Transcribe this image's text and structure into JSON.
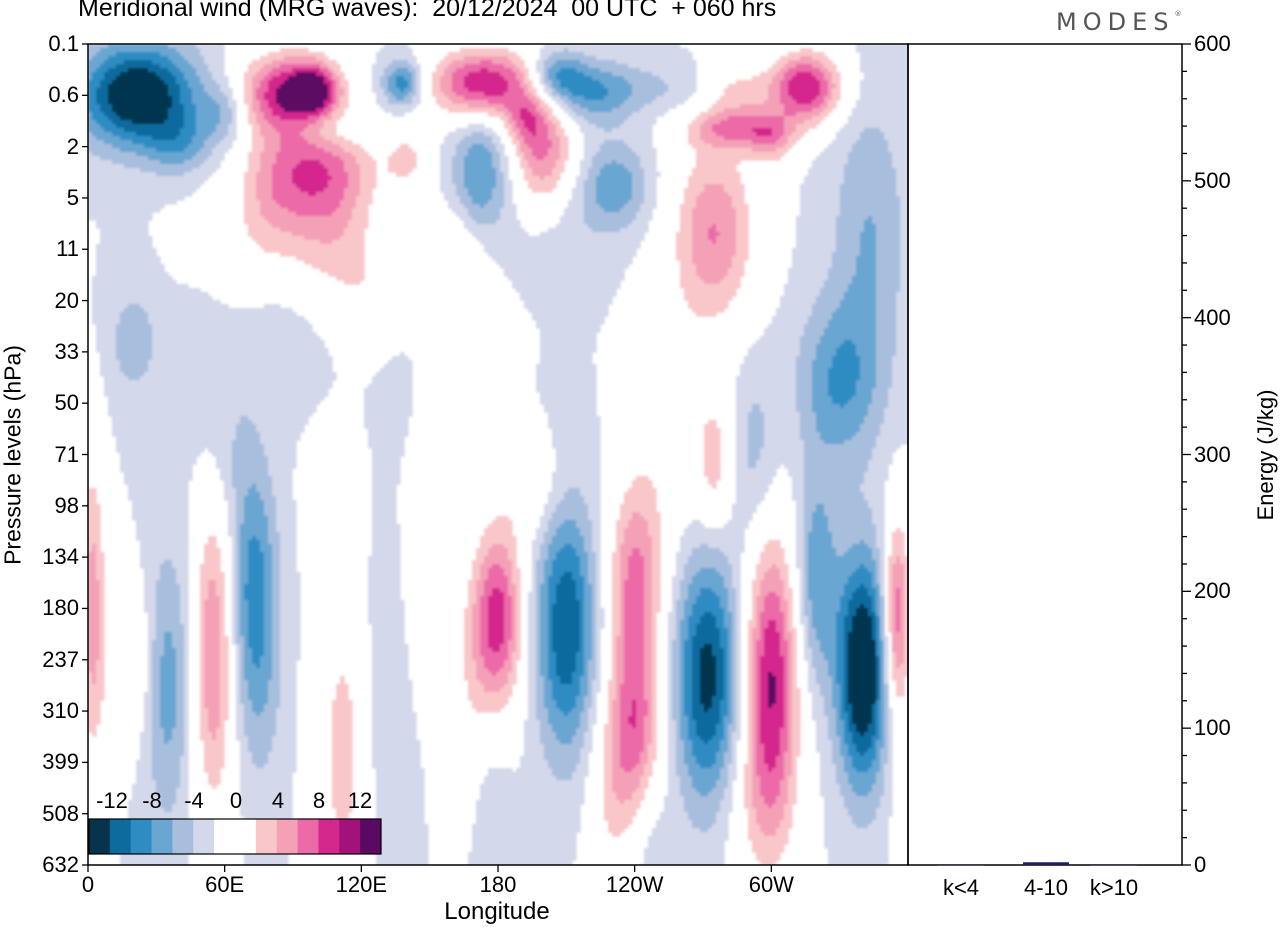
{
  "title": "Meridional wind (MRG waves):  20/12/2024  00 UTC  + 060 hrs",
  "logo": "MODES",
  "chart_data": [
    {
      "type": "heatmap",
      "xlabel": "Longitude",
      "ylabel": "Pressure levels (hPa)",
      "x_ticks": [
        {
          "label": "0",
          "lon": 0
        },
        {
          "label": "60E",
          "lon": 60
        },
        {
          "label": "120E",
          "lon": 120
        },
        {
          "label": "180",
          "lon": 180
        },
        {
          "label": "120W",
          "lon": 240
        },
        {
          "label": "60W",
          "lon": 300
        }
      ],
      "xlim": [
        0,
        360
      ],
      "y_ticks": [
        "0.1",
        "0.6",
        "2",
        "5",
        "11",
        "20",
        "33",
        "50",
        "71",
        "98",
        "134",
        "180",
        "237",
        "310",
        "399",
        "508",
        "632"
      ],
      "colorbar": {
        "labels": [
          "-12",
          "-8",
          "-4",
          "0",
          "4",
          "8",
          "12"
        ],
        "colors": [
          "#06344f",
          "#0d6b9e",
          "#2f8cc3",
          "#6aa6d2",
          "#a8bedd",
          "#d3d8ea",
          "#ffffff",
          "#ffffff",
          "#f9c7c9",
          "#f4a1b7",
          "#ec6aa8",
          "#d4288c",
          "#a3117a",
          "#5b0a63"
        ]
      },
      "blobs": [
        {
          "lon": 22,
          "lev": 0.6,
          "dlon": 26,
          "dlev": 1.0,
          "v": -13
        },
        {
          "lon": 60,
          "lev": 0.9,
          "dlon": 10,
          "dlev": 0.6,
          "v": -4
        },
        {
          "lon": 40,
          "lev": 1.9,
          "dlon": 14,
          "dlev": 0.6,
          "v": -4
        },
        {
          "lon": 88,
          "lev": 0.55,
          "dlon": 22,
          "dlev": 0.8,
          "v": 12
        },
        {
          "lon": 100,
          "lev": 0.5,
          "dlon": 10,
          "dlev": 0.5,
          "v": 7
        },
        {
          "lon": 138,
          "lev": 0.4,
          "dlon": 9,
          "dlev": 0.45,
          "v": -8
        },
        {
          "lon": 174,
          "lev": 0.4,
          "dlon": 24,
          "dlev": 0.7,
          "v": 12
        },
        {
          "lon": 205,
          "lev": 0.3,
          "dlon": 12,
          "dlev": 0.5,
          "v": -7
        },
        {
          "lon": 220,
          "lev": 0.55,
          "dlon": 20,
          "dlev": 0.6,
          "v": -6
        },
        {
          "lon": 250,
          "lev": 0.45,
          "dlon": 26,
          "dlev": 0.45,
          "v": -2
        },
        {
          "lon": 285,
          "lev": 0.5,
          "dlon": 14,
          "dlev": 0.5,
          "v": 4
        },
        {
          "lon": 315,
          "lev": 0.45,
          "dlon": 16,
          "dlev": 0.7,
          "v": 12
        },
        {
          "lon": 285,
          "lev": 1.3,
          "dlon": 22,
          "dlev": 0.4,
          "v": 7
        },
        {
          "lon": 300,
          "lev": 1.8,
          "dlon": 10,
          "dlev": 0.5,
          "v": 5
        },
        {
          "lon": 105,
          "lev": 1.3,
          "dlon": 16,
          "dlev": 0.4,
          "v": -3
        },
        {
          "lon": 100,
          "lev": 2.8,
          "dlon": 26,
          "dlev": 0.9,
          "v": 7
        },
        {
          "lon": 80,
          "lev": 5.5,
          "dlon": 16,
          "dlev": 1.2,
          "v": 4
        },
        {
          "lon": 105,
          "lev": 6.5,
          "dlon": 20,
          "dlev": 1.2,
          "v": 5
        },
        {
          "lon": 140,
          "lev": 2.5,
          "dlon": 10,
          "dlev": 0.6,
          "v": 4
        },
        {
          "lon": 172,
          "lev": 3.2,
          "dlon": 12,
          "dlev": 1.2,
          "v": -6
        },
        {
          "lon": 200,
          "lev": 2.2,
          "dlon": 14,
          "dlev": 1.2,
          "v": 9
        },
        {
          "lon": 192,
          "lev": 1.1,
          "dlon": 8,
          "dlev": 0.5,
          "v": 4
        },
        {
          "lon": 232,
          "lev": 4.0,
          "dlon": 14,
          "dlev": 0.8,
          "v": -5
        },
        {
          "lon": 208,
          "lev": 6.0,
          "dlon": 24,
          "dlev": 1.3,
          "v": -2
        },
        {
          "lon": 275,
          "lev": 8.5,
          "dlon": 18,
          "dlev": 1.8,
          "v": 8
        },
        {
          "lon": 343,
          "lev": 8.5,
          "dlon": 16,
          "dlev": 2.6,
          "v": -4
        },
        {
          "lon": 160,
          "lev": 10.5,
          "dlon": 14,
          "dlev": 0.8,
          "v": 3
        },
        {
          "lon": 60,
          "lev": 13,
          "dlon": 20,
          "dlev": 1.2,
          "v": 2
        },
        {
          "lon": 120,
          "lev": 20,
          "dlon": 40,
          "dlev": 1.3,
          "v": 4
        },
        {
          "lon": 90,
          "lev": 27,
          "dlon": 28,
          "dlev": 1.3,
          "v": -3
        },
        {
          "lon": 50,
          "lev": 26,
          "dlon": 14,
          "dlev": 1.0,
          "v": -2
        },
        {
          "lon": 20,
          "lev": 30,
          "dlon": 12,
          "dlev": 1.2,
          "v": -3
        },
        {
          "lon": 140,
          "lev": 38,
          "dlon": 14,
          "dlev": 1.2,
          "v": -2
        },
        {
          "lon": 152,
          "lev": 49,
          "dlon": 10,
          "dlev": 1.2,
          "v": 3
        },
        {
          "lon": 330,
          "lev": 42,
          "dlon": 18,
          "dlev": 1.6,
          "v": -6
        },
        {
          "lon": 255,
          "lev": 55,
          "dlon": 16,
          "dlev": 2.6,
          "v": 3
        },
        {
          "lon": 275,
          "lev": 75,
          "dlon": 8,
          "dlev": 1.4,
          "v": 5
        },
        {
          "lon": 293,
          "lev": 70,
          "dlon": 10,
          "dlev": 1.8,
          "v": -3
        },
        {
          "lon": 60,
          "lev": 70,
          "dlon": 14,
          "dlev": 1.5,
          "v": -2
        },
        {
          "lon": 107,
          "lev": 90,
          "dlon": 10,
          "dlev": 1.4,
          "v": 3
        },
        {
          "lon": 195,
          "lev": 88,
          "dlon": 14,
          "dlev": 1.0,
          "v": 3
        },
        {
          "lon": 150,
          "lev": 150,
          "dlon": 10,
          "dlev": 2.0,
          "v": 3
        },
        {
          "lon": 2,
          "lev": 180,
          "dlon": 6,
          "dlev": 3.2,
          "v": 7
        },
        {
          "lon": 18,
          "lev": 240,
          "dlon": 10,
          "dlev": 1.5,
          "v": 4
        },
        {
          "lon": 35,
          "lev": 270,
          "dlon": 10,
          "dlev": 2.6,
          "v": -5
        },
        {
          "lon": 55,
          "lev": 230,
          "dlon": 9,
          "dlev": 3.2,
          "v": 8
        },
        {
          "lon": 73,
          "lev": 160,
          "dlon": 10,
          "dlev": 2.3,
          "v": -7
        },
        {
          "lon": 76,
          "lev": 300,
          "dlon": 10,
          "dlev": 2.0,
          "v": -2
        },
        {
          "lon": 112,
          "lev": 380,
          "dlon": 12,
          "dlev": 3.2,
          "v": 5
        },
        {
          "lon": 130,
          "lev": 300,
          "dlon": 10,
          "dlev": 3.0,
          "v": -2
        },
        {
          "lon": 180,
          "lev": 190,
          "dlon": 11,
          "dlev": 1.8,
          "v": 11
        },
        {
          "lon": 168,
          "lev": 300,
          "dlon": 10,
          "dlev": 2.6,
          "v": 3
        },
        {
          "lon": 175,
          "lev": 470,
          "dlon": 10,
          "dlev": 2.0,
          "v": -2
        },
        {
          "lon": 210,
          "lev": 200,
          "dlon": 13,
          "dlev": 2.4,
          "v": -10
        },
        {
          "lon": 240,
          "lev": 150,
          "dlon": 12,
          "dlev": 1.9,
          "v": 8
        },
        {
          "lon": 240,
          "lev": 340,
          "dlon": 12,
          "dlev": 1.9,
          "v": 9
        },
        {
          "lon": 228,
          "lev": 480,
          "dlon": 10,
          "dlev": 2.0,
          "v": 3
        },
        {
          "lon": 272,
          "lev": 260,
          "dlon": 14,
          "dlev": 2.4,
          "v": -11
        },
        {
          "lon": 300,
          "lev": 260,
          "dlon": 12,
          "dlev": 2.8,
          "v": 12
        },
        {
          "lon": 295,
          "lev": 500,
          "dlon": 16,
          "dlev": 1.8,
          "v": 3
        },
        {
          "lon": 320,
          "lev": 150,
          "dlon": 9,
          "dlev": 2.0,
          "v": -6
        },
        {
          "lon": 340,
          "lev": 250,
          "dlon": 11,
          "dlev": 2.2,
          "v": -14
        },
        {
          "lon": 355,
          "lev": 190,
          "dlon": 6,
          "dlev": 2.0,
          "v": 10
        },
        {
          "lon": 360,
          "lev": 600,
          "dlon": 6,
          "dlev": 1.8,
          "v": 4
        },
        {
          "lon": 247,
          "lev": 560,
          "dlon": 8,
          "dlev": 1.5,
          "v": -2
        }
      ]
    },
    {
      "type": "bar",
      "ylabel": "Energy (J/kg)",
      "ylim": [
        0,
        600
      ],
      "y_ticks": [
        0,
        100,
        200,
        300,
        400,
        500,
        600
      ],
      "categories": [
        "k<4",
        "4-10",
        "k>10"
      ],
      "values": [
        0,
        2,
        0
      ],
      "bar_color": "#1a1f5e"
    }
  ]
}
